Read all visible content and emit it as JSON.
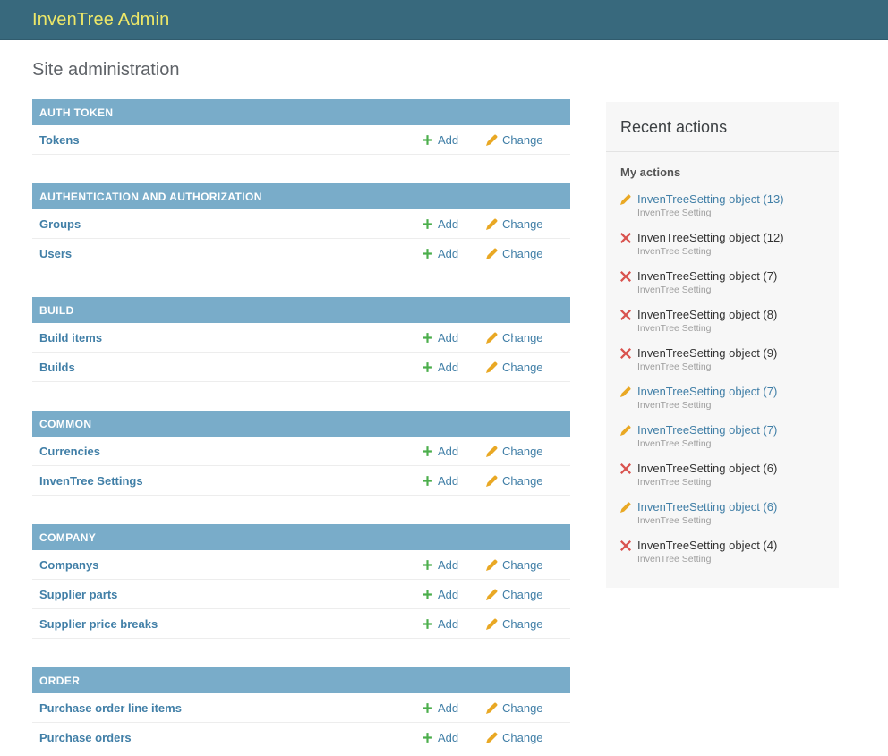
{
  "header": {
    "title": "InvenTree Admin"
  },
  "page": {
    "title": "Site administration"
  },
  "actions_labels": {
    "add": "Add",
    "change": "Change"
  },
  "modules": [
    {
      "caption": "AUTH TOKEN",
      "models": [
        {
          "name": "Tokens"
        }
      ]
    },
    {
      "caption": "AUTHENTICATION AND AUTHORIZATION",
      "models": [
        {
          "name": "Groups"
        },
        {
          "name": "Users"
        }
      ]
    },
    {
      "caption": "BUILD",
      "models": [
        {
          "name": "Build items"
        },
        {
          "name": "Builds"
        }
      ]
    },
    {
      "caption": "COMMON",
      "models": [
        {
          "name": "Currencies"
        },
        {
          "name": "InvenTree Settings"
        }
      ]
    },
    {
      "caption": "COMPANY",
      "models": [
        {
          "name": "Companys"
        },
        {
          "name": "Supplier parts"
        },
        {
          "name": "Supplier price breaks"
        }
      ]
    },
    {
      "caption": "ORDER",
      "models": [
        {
          "name": "Purchase order line items"
        },
        {
          "name": "Purchase orders"
        }
      ]
    }
  ],
  "sidebar": {
    "title": "Recent actions",
    "subtitle": "My actions",
    "items": [
      {
        "type": "change",
        "label": "InvenTreeSetting object (13)",
        "sub": "InvenTree Setting",
        "is_link": true
      },
      {
        "type": "delete",
        "label": "InvenTreeSetting object (12)",
        "sub": "InvenTree Setting",
        "is_link": false
      },
      {
        "type": "delete",
        "label": "InvenTreeSetting object (7)",
        "sub": "InvenTree Setting",
        "is_link": false
      },
      {
        "type": "delete",
        "label": "InvenTreeSetting object (8)",
        "sub": "InvenTree Setting",
        "is_link": false
      },
      {
        "type": "delete",
        "label": "InvenTreeSetting object (9)",
        "sub": "InvenTree Setting",
        "is_link": false
      },
      {
        "type": "change",
        "label": "InvenTreeSetting object (7)",
        "sub": "InvenTree Setting",
        "is_link": true
      },
      {
        "type": "change",
        "label": "InvenTreeSetting object (7)",
        "sub": "InvenTree Setting",
        "is_link": true
      },
      {
        "type": "delete",
        "label": "InvenTreeSetting object (6)",
        "sub": "InvenTree Setting",
        "is_link": false
      },
      {
        "type": "change",
        "label": "InvenTreeSetting object (6)",
        "sub": "InvenTree Setting",
        "is_link": true
      },
      {
        "type": "delete",
        "label": "InvenTreeSetting object (4)",
        "sub": "InvenTree Setting",
        "is_link": false
      }
    ]
  },
  "colors": {
    "header_bg": "#38697d",
    "header_text": "#eee868",
    "caption_bg": "#79acc9",
    "link_blue": "#417fa7",
    "add_green": "#4cae4c",
    "pencil_gold": "#e9a824",
    "delete_red": "#d9534f",
    "sidebar_bg": "#f7f7f7",
    "heading_gray": "#5f6368"
  }
}
